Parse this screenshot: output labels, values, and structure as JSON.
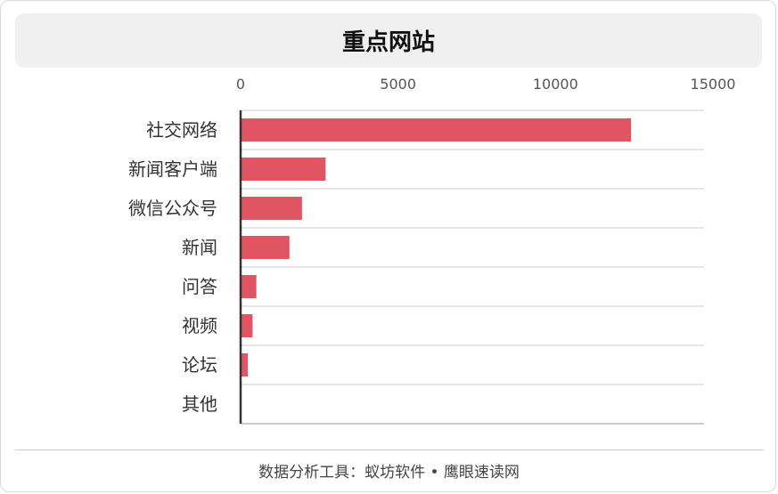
{
  "chart_data": {
    "type": "bar",
    "orientation": "horizontal",
    "title": "重点网站",
    "categories": [
      "社交网络",
      "新闻客户端",
      "微信公众号",
      "新闻",
      "问答",
      "视频",
      "论坛",
      "其他"
    ],
    "values": [
      12400,
      2700,
      1950,
      1550,
      500,
      380,
      230,
      0
    ],
    "xlim": [
      0,
      15000
    ],
    "x_ticks": [
      "0",
      "5000",
      "10000",
      "15000"
    ],
    "bar_color": "#e05561",
    "grid": true
  },
  "footer": {
    "source_text": "数据分析工具：蚁坊软件 • 鹰眼速读网"
  }
}
